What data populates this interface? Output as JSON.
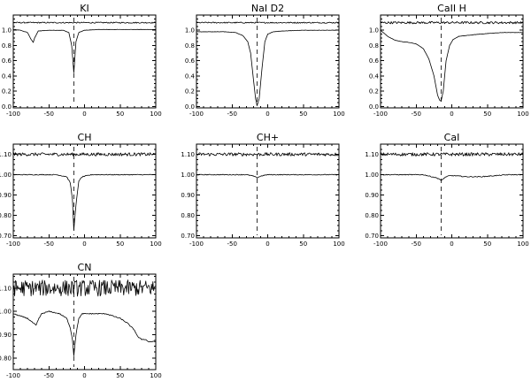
{
  "chart_data": [
    {
      "type": "line",
      "title": "KI",
      "xlim": [
        -100,
        100
      ],
      "ylim": [
        -0.02,
        1.2
      ],
      "xticks": [
        -100,
        -50,
        0,
        50,
        100
      ],
      "yticks": [
        0.0,
        0.2,
        0.4,
        0.6,
        0.8,
        1.0
      ],
      "ytick_labels": [
        "0.0",
        "0.2",
        "0.4",
        "0.6",
        "0.8",
        "1.0"
      ],
      "marker_x": -15,
      "series": [
        {
          "baseline": 1.01,
          "x": [
            -100,
            -90,
            -80,
            -75,
            -72,
            -70,
            -65,
            -50,
            -30,
            -22,
            -18,
            -15,
            -12,
            -8,
            0,
            20,
            50,
            80,
            100
          ],
          "y": [
            1.01,
            1.0,
            0.97,
            0.88,
            0.84,
            0.9,
            0.99,
            1.0,
            1.0,
            0.97,
            0.8,
            0.44,
            0.85,
            0.97,
            1.0,
            1.01,
            1.01,
            1.01,
            1.01
          ]
        },
        {
          "baseline": 1.1,
          "noise": 0.008,
          "x": [
            -100,
            100
          ],
          "y": [
            1.1,
            1.1
          ]
        }
      ]
    },
    {
      "type": "line",
      "title": "NaI D2",
      "xlim": [
        -100,
        100
      ],
      "ylim": [
        -0.02,
        1.2
      ],
      "xticks": [
        -100,
        -50,
        0,
        50,
        100
      ],
      "yticks": [
        0.0,
        0.2,
        0.4,
        0.6,
        0.8,
        1.0
      ],
      "ytick_labels": [
        "0.0",
        "0.2",
        "0.4",
        "0.6",
        "0.8",
        "1.0"
      ],
      "marker_x": -15,
      "series": [
        {
          "baseline": 1.0,
          "x": [
            -100,
            -60,
            -45,
            -35,
            -28,
            -24,
            -20,
            -17,
            -15,
            -12,
            -8,
            -4,
            0,
            8,
            20,
            50,
            80,
            100
          ],
          "y": [
            0.98,
            0.98,
            0.97,
            0.93,
            0.85,
            0.7,
            0.35,
            0.1,
            0.01,
            0.1,
            0.5,
            0.85,
            0.95,
            0.98,
            0.99,
            1.0,
            1.0,
            1.0
          ]
        },
        {
          "baseline": 1.1,
          "noise": 0.008,
          "x": [
            -100,
            100
          ],
          "y": [
            1.1,
            1.1
          ]
        }
      ]
    },
    {
      "type": "line",
      "title": "CaII H",
      "xlim": [
        -100,
        100
      ],
      "ylim": [
        -0.02,
        1.2
      ],
      "xticks": [
        -100,
        -50,
        0,
        50,
        100
      ],
      "yticks": [
        0.0,
        0.2,
        0.4,
        0.6,
        0.8,
        1.0
      ],
      "ytick_labels": [
        "0.0",
        "0.2",
        "0.4",
        "0.6",
        "0.8",
        "1.0"
      ],
      "marker_x": -15,
      "series": [
        {
          "baseline": 0.95,
          "x": [
            -100,
            -90,
            -80,
            -70,
            -60,
            -50,
            -40,
            -32,
            -25,
            -20,
            -17,
            -15,
            -12,
            -8,
            -3,
            2,
            10,
            20,
            40,
            70,
            100
          ],
          "y": [
            1.0,
            0.92,
            0.87,
            0.85,
            0.84,
            0.82,
            0.76,
            0.62,
            0.4,
            0.15,
            0.08,
            0.07,
            0.2,
            0.6,
            0.8,
            0.88,
            0.92,
            0.93,
            0.95,
            0.97,
            0.97
          ]
        },
        {
          "baseline": 1.1,
          "noise": 0.015,
          "x": [
            -100,
            100
          ],
          "y": [
            1.1,
            1.1
          ]
        }
      ]
    },
    {
      "type": "line",
      "title": "CH",
      "xlim": [
        -100,
        100
      ],
      "ylim": [
        0.69,
        1.15
      ],
      "xticks": [
        -100,
        -50,
        0,
        50,
        100
      ],
      "yticks": [
        0.7,
        0.8,
        0.9,
        1.0,
        1.1
      ],
      "ytick_labels": [
        "0.70",
        "0.80",
        "0.90",
        "1.00",
        "1.10"
      ],
      "marker_x": -15,
      "series": [
        {
          "baseline": 1.0,
          "x": [
            -100,
            -40,
            -25,
            -20,
            -17,
            -15,
            -12,
            -8,
            -3,
            10,
            50,
            100
          ],
          "y": [
            1.0,
            1.0,
            0.99,
            0.96,
            0.88,
            0.73,
            0.85,
            0.97,
            0.99,
            1.0,
            1.0,
            1.0
          ]
        },
        {
          "baseline": 1.1,
          "noise": 0.008,
          "x": [
            -100,
            100
          ],
          "y": [
            1.1,
            1.1
          ]
        }
      ]
    },
    {
      "type": "line",
      "title": "CH+",
      "xlim": [
        -100,
        100
      ],
      "ylim": [
        0.69,
        1.15
      ],
      "xticks": [
        -100,
        -50,
        0,
        50,
        100
      ],
      "yticks": [
        0.7,
        0.8,
        0.9,
        1.0,
        1.1
      ],
      "ytick_labels": [
        "0.70",
        "0.80",
        "0.90",
        "1.00",
        "1.10"
      ],
      "marker_x": -15,
      "series": [
        {
          "baseline": 1.0,
          "x": [
            -100,
            -30,
            -22,
            -18,
            -15,
            -12,
            -8,
            0,
            50,
            100
          ],
          "y": [
            1.0,
            1.0,
            0.995,
            0.99,
            0.985,
            0.99,
            0.995,
            1.0,
            1.0,
            1.0
          ]
        },
        {
          "baseline": 1.1,
          "noise": 0.008,
          "x": [
            -100,
            100
          ],
          "y": [
            1.1,
            1.1
          ]
        }
      ]
    },
    {
      "type": "line",
      "title": "CaI",
      "xlim": [
        -100,
        100
      ],
      "ylim": [
        0.69,
        1.15
      ],
      "xticks": [
        -100,
        -50,
        0,
        50,
        100
      ],
      "yticks": [
        0.7,
        0.8,
        0.9,
        1.0,
        1.1
      ],
      "ytick_labels": [
        "0.70",
        "0.80",
        "0.90",
        "1.00",
        "1.10"
      ],
      "marker_x": -15,
      "series": [
        {
          "baseline": 1.0,
          "x": [
            -100,
            -40,
            -28,
            -22,
            -18,
            -15,
            -12,
            -8,
            -3,
            5,
            20,
            40,
            60,
            80,
            100
          ],
          "y": [
            1.0,
            1.0,
            0.99,
            0.985,
            0.98,
            0.97,
            0.98,
            0.99,
            0.995,
            0.995,
            0.99,
            0.99,
            0.995,
            1.0,
            1.0
          ]
        },
        {
          "baseline": 1.1,
          "noise": 0.008,
          "x": [
            -100,
            100
          ],
          "y": [
            1.1,
            1.1
          ]
        }
      ]
    },
    {
      "type": "line",
      "title": "CN",
      "xlim": [
        -100,
        100
      ],
      "ylim": [
        0.75,
        1.16
      ],
      "xticks": [
        -100,
        -50,
        0,
        50,
        100
      ],
      "yticks": [
        0.8,
        0.9,
        1.0,
        1.1
      ],
      "ytick_labels": [
        "0.80",
        "0.90",
        "1.00",
        "1.10"
      ],
      "marker_x": -15,
      "series": [
        {
          "baseline": 1.0,
          "x": [
            -100,
            -90,
            -80,
            -72,
            -68,
            -64,
            -60,
            -50,
            -35,
            -25,
            -20,
            -17,
            -15,
            -12,
            -8,
            -3,
            0,
            10,
            20,
            30,
            40,
            50,
            60,
            70,
            75,
            80,
            85,
            90,
            100
          ],
          "y": [
            0.99,
            0.98,
            0.97,
            0.95,
            0.94,
            0.97,
            0.99,
            1.0,
            0.99,
            0.97,
            0.93,
            0.88,
            0.81,
            0.9,
            0.97,
            0.99,
            0.99,
            0.99,
            0.99,
            0.99,
            0.98,
            0.97,
            0.95,
            0.92,
            0.89,
            0.88,
            0.88,
            0.87,
            0.87
          ]
        },
        {
          "baseline": 1.1,
          "noise": 0.035,
          "x": [
            -100,
            100
          ],
          "y": [
            1.1,
            1.1
          ]
        }
      ]
    }
  ]
}
